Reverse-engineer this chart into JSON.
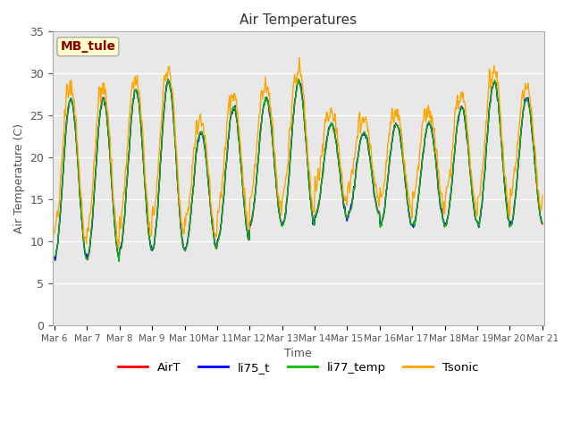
{
  "title": "Air Temperatures",
  "xlabel": "Time",
  "ylabel": "Air Temperature (C)",
  "ylim": [
    0,
    35
  ],
  "yticks": [
    0,
    5,
    10,
    15,
    20,
    25,
    30,
    35
  ],
  "annotation_text": "MB_tule",
  "annotation_color": "#8B0000",
  "annotation_bg": "#FFFFCC",
  "plot_bg_color": "#E8E8E8",
  "fig_bg_color": "#FFFFFF",
  "legend_labels": [
    "AirT",
    "li75_t",
    "li77_temp",
    "Tsonic"
  ],
  "legend_colors": [
    "#FF0000",
    "#0000FF",
    "#00BB00",
    "#FFA500"
  ],
  "xstart_day": 6,
  "xend_day": 21,
  "days": 15,
  "pts_per_day": 48
}
